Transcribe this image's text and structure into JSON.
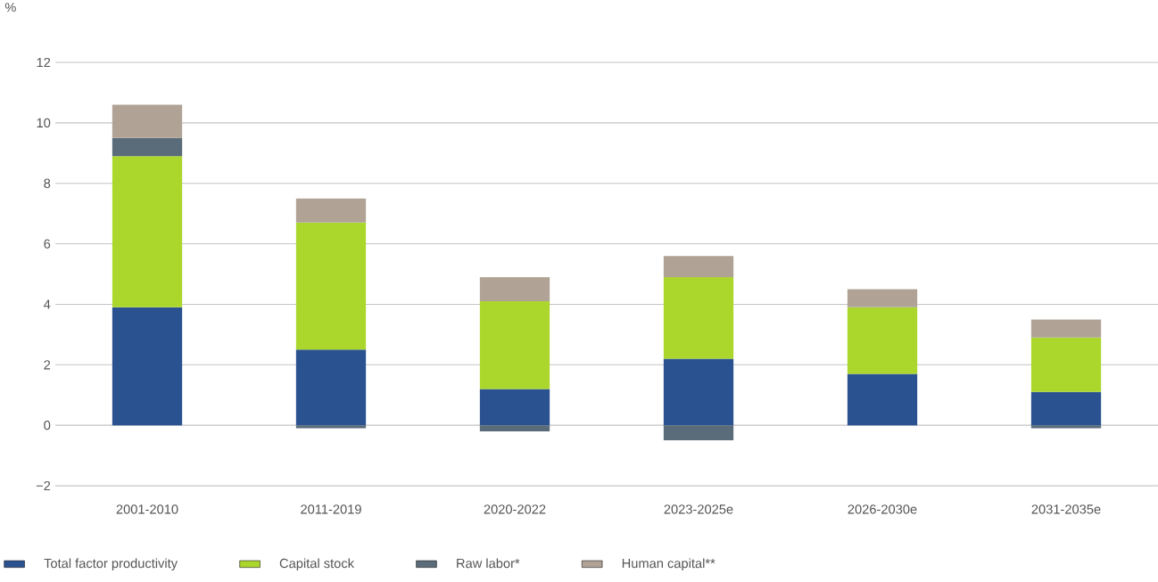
{
  "chart_data": {
    "type": "bar",
    "stacked": true,
    "ylabel": "%",
    "categories": [
      "2001-2010",
      "2011-2019",
      "2020-2022",
      "2023-2025e",
      "2026-2030e",
      "2031-2035e"
    ],
    "series": [
      {
        "name": "Total factor productivity",
        "color": "#2b5290",
        "values": [
          3.9,
          2.5,
          1.2,
          2.2,
          1.7,
          1.1
        ]
      },
      {
        "name": "Capital stock",
        "color": "#abd72d",
        "values": [
          5.0,
          4.2,
          2.9,
          2.7,
          2.2,
          1.8
        ]
      },
      {
        "name": "Raw labor*",
        "color": "#5a6c79",
        "values": [
          0.6,
          -0.1,
          -0.2,
          -0.5,
          0,
          -0.1
        ]
      },
      {
        "name": "Human capital**",
        "color": "#b0a396",
        "values": [
          1.1,
          0.8,
          0.8,
          0.7,
          0.6,
          0.6
        ]
      }
    ],
    "ylim": [
      -2,
      12
    ],
    "yticks": [
      {
        "value": -2,
        "label": "−2"
      },
      0,
      2,
      4,
      6,
      8,
      10,
      12
    ],
    "grid": "y",
    "legend": "bottom left"
  }
}
